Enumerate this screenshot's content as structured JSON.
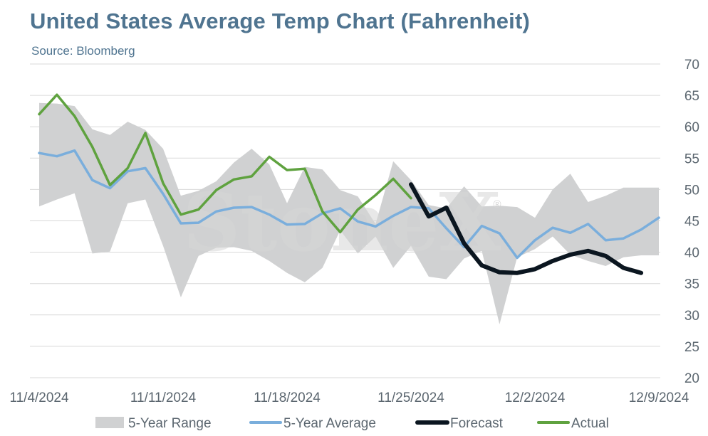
{
  "header": {
    "title": "United States Average Temp Chart (Fahrenheit)",
    "source": "Source: Bloomberg"
  },
  "watermark": {
    "text": "StoneX",
    "mark": "®"
  },
  "colors": {
    "range": "#d0d1d2",
    "average": "#7aaedc",
    "forecast": "#0b1620",
    "actual": "#5fa23f",
    "grid": "#d9d9d9",
    "title": "#4f7490"
  },
  "chart_data": {
    "type": "line",
    "x_labels": [
      "11/4/2024",
      "11/5/2024",
      "11/6/2024",
      "11/7/2024",
      "11/8/2024",
      "11/9/2024",
      "11/10/2024",
      "11/11/2024",
      "11/12/2024",
      "11/13/2024",
      "11/14/2024",
      "11/15/2024",
      "11/16/2024",
      "11/17/2024",
      "11/18/2024",
      "11/19/2024",
      "11/20/2024",
      "11/21/2024",
      "11/22/2024",
      "11/23/2024",
      "11/24/2024",
      "11/25/2024",
      "11/26/2024",
      "11/27/2024",
      "11/28/2024",
      "11/29/2024",
      "11/30/2024",
      "12/1/2024",
      "12/2/2024",
      "12/3/2024",
      "12/4/2024",
      "12/5/2024",
      "12/6/2024",
      "12/7/2024",
      "12/8/2024",
      "12/9/2024"
    ],
    "x_tick_labels": [
      "11/4/2024",
      "11/11/2024",
      "11/18/2024",
      "11/25/2024",
      "12/2/2024",
      "12/9/2024"
    ],
    "y_axis": {
      "min": 20,
      "max": 70,
      "step": 5,
      "position": "right"
    },
    "grid": true,
    "legend_position": "bottom",
    "series": [
      {
        "name": "5-Year Range",
        "kind": "band",
        "upper": [
          63.8,
          63.7,
          63.3,
          59.6,
          58.7,
          60.8,
          59.5,
          56.5,
          49,
          49.8,
          51.3,
          54.3,
          56.5,
          54,
          47.8,
          53.6,
          53.2,
          49.9,
          48.9,
          44.5,
          54.5,
          51.5,
          47.5,
          47,
          50.5,
          47.3,
          47.4,
          47.2,
          45.5,
          50,
          52.5,
          48,
          49,
          50.3,
          null,
          null
        ],
        "lower": [
          47.3,
          48.4,
          49.4,
          39.8,
          40.1,
          47.8,
          48.4,
          41,
          32.8,
          39.4,
          40.7,
          40.8,
          40.2,
          38.6,
          36.7,
          35.2,
          37.5,
          43.5,
          39.8,
          42.5,
          37.5,
          41,
          36.1,
          35.7,
          39,
          40.2,
          28.5,
          39.2,
          40.5,
          42.5,
          39.6,
          38.6,
          37.8,
          39.2,
          39.5,
          39.5
        ]
      },
      {
        "name": "5-Year Average",
        "kind": "line",
        "values": [
          55.8,
          55.3,
          56.2,
          51.5,
          50.2,
          52.9,
          53.4,
          49.3,
          44.6,
          44.7,
          46.5,
          47.1,
          47.2,
          46,
          44.4,
          44.5,
          46.2,
          47,
          44.9,
          44.1,
          45.8,
          47.2,
          47,
          43.8,
          40.8,
          44.2,
          43,
          39.1,
          41.9,
          43.9,
          43.1,
          44.5,
          41.9,
          42.2,
          43.6,
          45.5
        ]
      },
      {
        "name": "Forecast",
        "kind": "line",
        "values": [
          null,
          null,
          null,
          null,
          null,
          null,
          null,
          null,
          null,
          null,
          null,
          null,
          null,
          null,
          null,
          null,
          null,
          null,
          null,
          null,
          null,
          50.8,
          45.7,
          47.1,
          41.4,
          37.9,
          36.8,
          36.7,
          37.3,
          38.6,
          39.6,
          40.2,
          39.4,
          37.5,
          36.7,
          null
        ]
      },
      {
        "name": "Actual",
        "kind": "line",
        "values": [
          62,
          65.1,
          61.7,
          56.8,
          50.7,
          53.4,
          59,
          51,
          46,
          46.8,
          49.9,
          51.6,
          52.1,
          55.2,
          53.1,
          53.3,
          46.5,
          43.2,
          46.8,
          49.1,
          51.7,
          48.6,
          null,
          null,
          null,
          null,
          null,
          null,
          null,
          null,
          null,
          null,
          null,
          null,
          null,
          null
        ]
      }
    ]
  }
}
